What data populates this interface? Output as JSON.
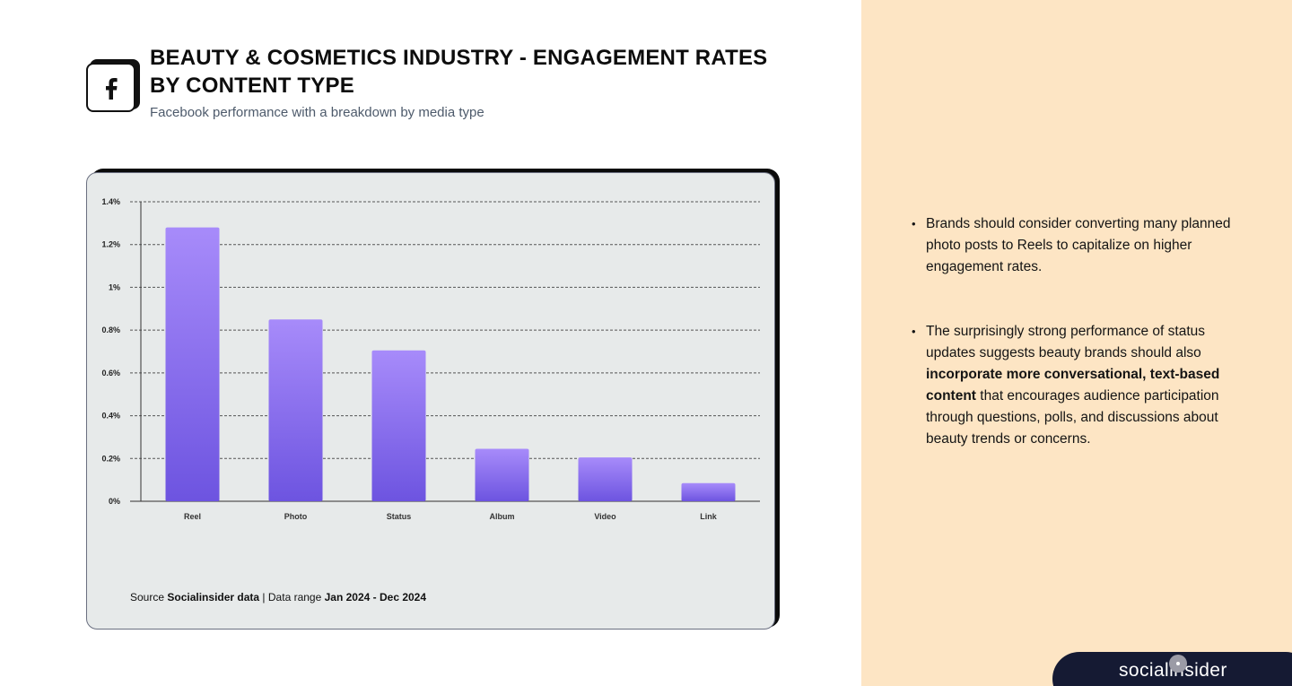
{
  "header": {
    "title": "BEAUTY & COSMETICS INDUSTRY - ENGAGEMENT RATES BY CONTENT TYPE",
    "subtitle": "Facebook performance with a breakdown by media type",
    "icon": "facebook-icon"
  },
  "chart_data": {
    "type": "bar",
    "title": "",
    "xlabel": "",
    "ylabel": "",
    "categories": [
      "Reel",
      "Photo",
      "Status",
      "Album",
      "Video",
      "Link"
    ],
    "values": [
      1.28,
      0.85,
      0.705,
      0.245,
      0.205,
      0.085
    ],
    "unit": "%",
    "ylim": [
      0,
      1.4
    ],
    "yticks": [
      0,
      0.2,
      0.4,
      0.6,
      0.8,
      1,
      1.2,
      1.4
    ],
    "ytick_labels": [
      "0%",
      "0.2%",
      "0.4%",
      "0.6%",
      "0.8%",
      "1%",
      "1.2%",
      "1.4%"
    ],
    "grid": true,
    "bar_color_top": "#a78bfa",
    "bar_color_bottom": "#6d54e0"
  },
  "source": {
    "prefix": "Source",
    "name": "Socialinsider data",
    "separator": "|",
    "range_label": "Data range",
    "range": "Jan 2024 - Dec 2024"
  },
  "insights": {
    "bullet1": "Brands should consider converting many planned photo posts to Reels to capitalize on higher engagement rates.",
    "bullet2_part1": "The surprisingly strong performance of status updates suggests beauty brands should also ",
    "bullet2_bold": "incorporate more conversational, text-based content",
    "bullet2_part2": " that encourages audience participation through questions, polls, and discussions about beauty trends or concerns."
  },
  "brand": {
    "logo_text": "socialinsider"
  },
  "colors": {
    "panel_bg": "#fde5c4",
    "card_bg": "#e7eaea",
    "logo_bg": "#151a33"
  }
}
